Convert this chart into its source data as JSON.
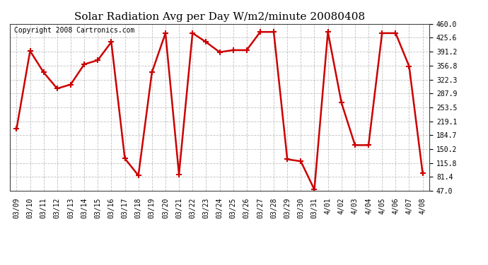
{
  "title": "Solar Radiation Avg per Day W/m2/minute 20080408",
  "copyright": "Copyright 2008 Cartronics.com",
  "labels": [
    "03/09",
    "03/10",
    "03/11",
    "03/12",
    "03/13",
    "03/14",
    "03/15",
    "03/16",
    "03/17",
    "03/18",
    "03/19",
    "03/20",
    "03/21",
    "03/22",
    "03/23",
    "03/24",
    "03/25",
    "03/26",
    "03/27",
    "03/28",
    "03/29",
    "03/30",
    "03/31",
    "4/01",
    "4/02",
    "4/03",
    "4/04",
    "4/05",
    "4/06",
    "4/07",
    "4/08"
  ],
  "values": [
    200,
    393,
    340,
    300,
    310,
    360,
    370,
    415,
    127,
    85,
    340,
    437,
    88,
    437,
    415,
    390,
    395,
    395,
    440,
    440,
    125,
    120,
    50,
    440,
    265,
    160,
    160,
    437,
    437,
    355,
    90
  ],
  "line_color": "#cc0000",
  "marker": "+",
  "marker_color": "#cc0000",
  "bg_color": "#ffffff",
  "plot_bg_color": "#ffffff",
  "grid_color": "#b0b0b0",
  "grid_style": "--",
  "ylim": [
    47.0,
    460.0
  ],
  "ytick_values": [
    47.0,
    81.4,
    115.8,
    150.2,
    184.7,
    219.1,
    253.5,
    287.9,
    322.3,
    356.8,
    391.2,
    425.6,
    460.0
  ],
  "ytick_labels": [
    "47.0",
    "81.4",
    "115.8",
    "150.2",
    "184.7",
    "219.1",
    "253.5",
    "287.9",
    "322.3",
    "356.8",
    "391.2",
    "425.6",
    "460.0"
  ],
  "title_fontsize": 11,
  "copyright_fontsize": 7,
  "tick_fontsize": 7,
  "line_width": 1.8,
  "marker_size": 6,
  "marker_edge_width": 1.5
}
